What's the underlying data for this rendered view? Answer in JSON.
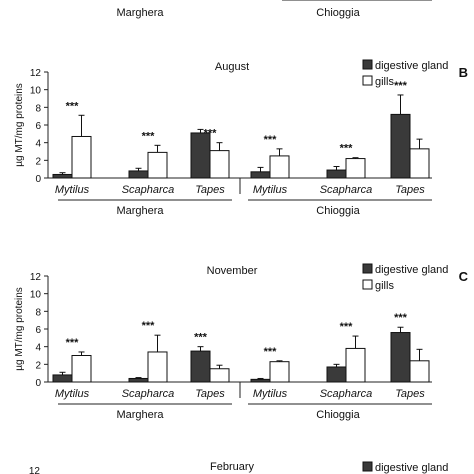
{
  "top_strip": {
    "site_left": "Marghera",
    "site_right": "Chioggia"
  },
  "chart_data": [
    {
      "type": "bar",
      "panel_letter": "B",
      "title": "August",
      "ylabel": "µg MT/mg proteins",
      "ylim": [
        0,
        12
      ],
      "yticks": [
        0,
        2,
        4,
        6,
        8,
        10,
        12
      ],
      "categories": [
        "Mytilus",
        "Scapharca",
        "Tapes",
        "Mytilus",
        "Scapharca",
        "Tapes"
      ],
      "groups": [
        "Marghera",
        "Chioggia"
      ],
      "series": [
        {
          "name": "digestive gland",
          "color": "#3a3a3a",
          "values": [
            0.4,
            0.8,
            5.1,
            0.7,
            0.9,
            7.2
          ],
          "errors": [
            0.2,
            0.3,
            0.4,
            0.5,
            0.4,
            2.2
          ]
        },
        {
          "name": "gills",
          "color": "#ffffff",
          "values": [
            4.7,
            2.9,
            3.1,
            2.5,
            2.2,
            3.3
          ],
          "errors": [
            2.4,
            0.8,
            0.9,
            0.8,
            0.1,
            1.1
          ]
        }
      ],
      "annotations": [
        "***",
        "***",
        "***",
        "***",
        "***",
        "***"
      ],
      "annotation_anchor": [
        "gills",
        "gills",
        "gills",
        "gills",
        "gills",
        "digestive gland"
      ]
    },
    {
      "type": "bar",
      "panel_letter": "C",
      "title": "November",
      "ylabel": "µg MT/mg proteins",
      "ylim": [
        0,
        12
      ],
      "yticks": [
        0,
        2,
        4,
        6,
        8,
        10,
        12
      ],
      "categories": [
        "Mytilus",
        "Scapharca",
        "Tapes",
        "Mytilus",
        "Scapharca",
        "Tapes"
      ],
      "groups": [
        "Marghera",
        "Chioggia"
      ],
      "series": [
        {
          "name": "digestive gland",
          "color": "#3a3a3a",
          "values": [
            0.8,
            0.4,
            3.5,
            0.3,
            1.7,
            5.6
          ],
          "errors": [
            0.3,
            0.1,
            0.5,
            0.1,
            0.3,
            0.6
          ]
        },
        {
          "name": "gills",
          "color": "#ffffff",
          "values": [
            3.0,
            3.4,
            1.5,
            2.3,
            3.8,
            2.4
          ],
          "errors": [
            0.4,
            1.9,
            0.4,
            0.1,
            1.4,
            1.3
          ]
        }
      ],
      "annotations": [
        "***",
        "***",
        "***",
        "***",
        "***",
        "***"
      ],
      "annotation_anchor": [
        "gills",
        "gills",
        "digestive gland",
        "gills",
        "gills",
        "digestive gland"
      ]
    },
    {
      "type": "bar",
      "partial": true,
      "title": "February",
      "yticks": [
        12
      ],
      "series": [
        {
          "name": "digestive gland",
          "color": "#3a3a3a"
        }
      ]
    }
  ]
}
